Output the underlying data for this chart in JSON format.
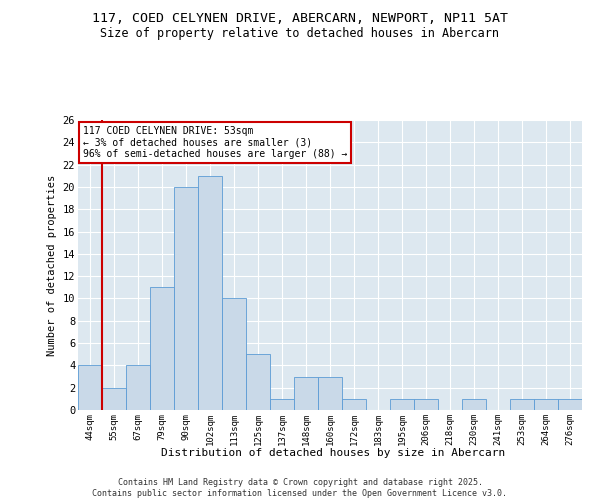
{
  "title": "117, COED CELYNEN DRIVE, ABERCARN, NEWPORT, NP11 5AT",
  "subtitle": "Size of property relative to detached houses in Abercarn",
  "xlabel": "Distribution of detached houses by size in Abercarn",
  "ylabel": "Number of detached properties",
  "categories": [
    "44sqm",
    "55sqm",
    "67sqm",
    "79sqm",
    "90sqm",
    "102sqm",
    "113sqm",
    "125sqm",
    "137sqm",
    "148sqm",
    "160sqm",
    "172sqm",
    "183sqm",
    "195sqm",
    "206sqm",
    "218sqm",
    "230sqm",
    "241sqm",
    "253sqm",
    "264sqm",
    "276sqm"
  ],
  "values": [
    4,
    2,
    4,
    11,
    20,
    21,
    10,
    5,
    1,
    3,
    3,
    1,
    0,
    1,
    1,
    0,
    1,
    0,
    1,
    1,
    1
  ],
  "bar_color": "#c9d9e8",
  "bar_edge_color": "#5b9bd5",
  "ylim": [
    0,
    26
  ],
  "yticks": [
    0,
    2,
    4,
    6,
    8,
    10,
    12,
    14,
    16,
    18,
    20,
    22,
    24,
    26
  ],
  "red_line_index": 1,
  "annotation_line1": "117 COED CELYNEN DRIVE: 53sqm",
  "annotation_line2": "← 3% of detached houses are smaller (3)",
  "annotation_line3": "96% of semi-detached houses are larger (88) →",
  "annotation_box_color": "#ffffff",
  "annotation_box_edge": "#cc0000",
  "red_line_color": "#cc0000",
  "background_color": "#dde8f0",
  "figure_bg_color": "#ffffff",
  "footer_line1": "Contains HM Land Registry data © Crown copyright and database right 2025.",
  "footer_line2": "Contains public sector information licensed under the Open Government Licence v3.0."
}
